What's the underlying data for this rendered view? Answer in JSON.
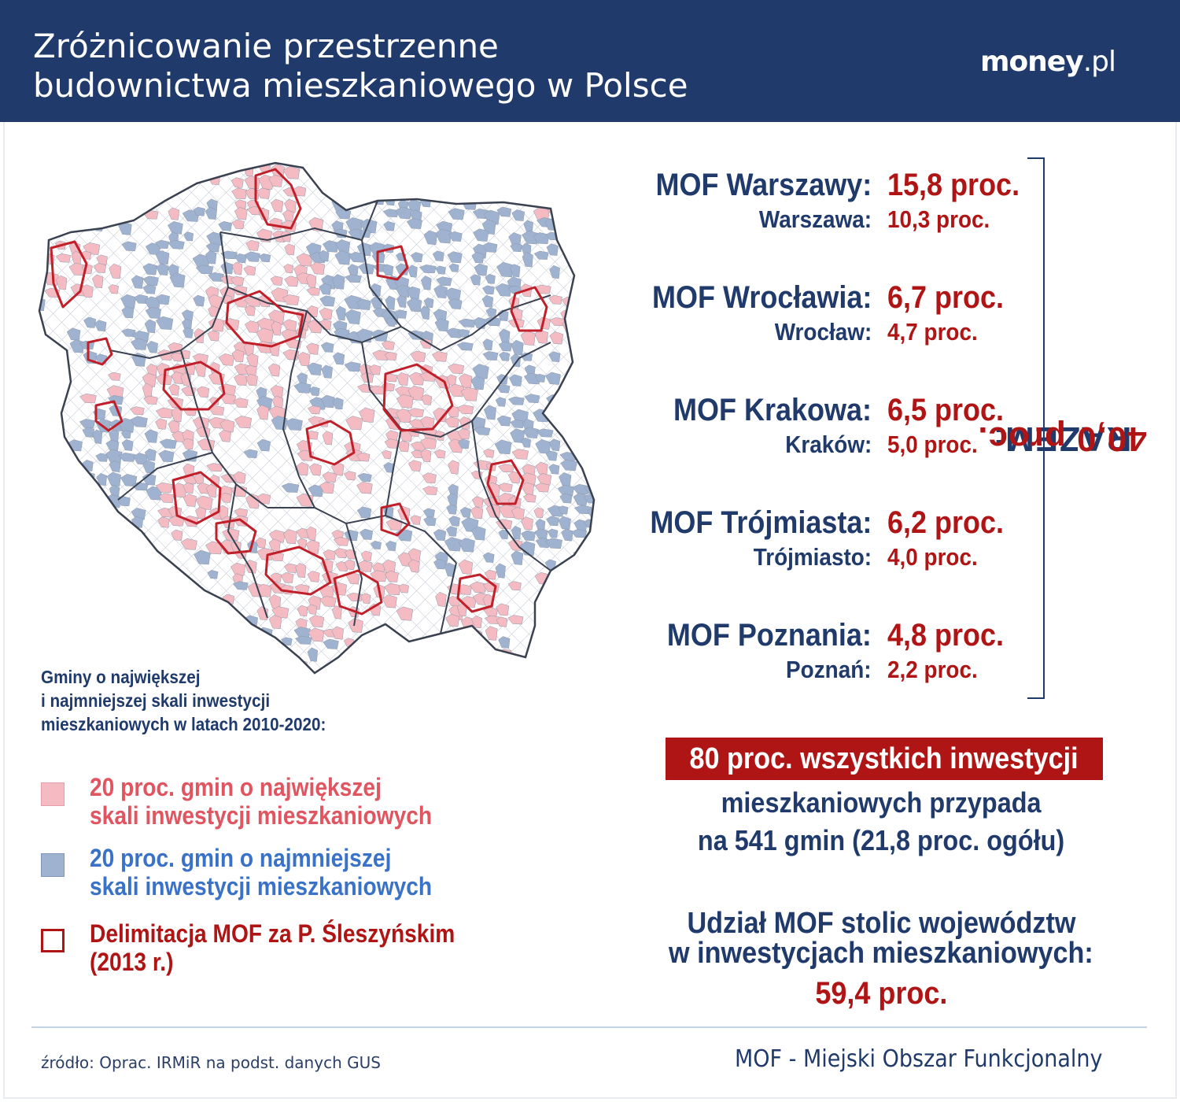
{
  "header": {
    "title_line1": "Zróżnicowanie przestrzenne",
    "title_line2": "budownictwa mieszkaniowego w Polsce",
    "logo_bold": "money",
    "logo_rest": ".pl"
  },
  "colors": {
    "navy": "#1f3a6b",
    "red": "#b01515",
    "pink_fill": "#f4bcc2",
    "blue_fill": "#9fb3d1",
    "pink_text": "#e05560",
    "blue_text": "#3a72c8"
  },
  "legend": {
    "title_line1": "Gminy o największej",
    "title_line2": "i najmniejszej skali inwestycji",
    "title_line3": "mieszkaniowych w latach 2010-2020:",
    "items": [
      {
        "line1": "20 proc. gmin o największej",
        "line2": "skali inwestycji mieszkaniowych"
      },
      {
        "line1": "20 proc. gmin o najmniejszej",
        "line2": "skali inwestycji mieszkaniowych"
      },
      {
        "line1": "Delimitacja MOF za P. Śleszyńskim",
        "line2": "(2013 r.)"
      }
    ]
  },
  "mof": [
    {
      "label": "MOF Warszawy:",
      "value": "15,8 proc.",
      "city": "Warszawa:",
      "city_value": "10,3 proc."
    },
    {
      "label": "MOF Wrocławia:",
      "value": "6,7 proc.",
      "city": "Wrocław:",
      "city_value": "4,7 proc."
    },
    {
      "label": "MOF Krakowa:",
      "value": "6,5 proc.",
      "city": "Kraków:",
      "city_value": "5,0 proc."
    },
    {
      "label": "MOF Trójmiasta:",
      "value": "6,2 proc.",
      "city": "Trójmiasto:",
      "city_value": "4,0 proc."
    },
    {
      "label": "MOF Poznania:",
      "value": "4,8 proc.",
      "city": "Poznań:",
      "city_value": "2,2 proc."
    }
  ],
  "razem": {
    "label": "RAZEM:",
    "value": "40,0 proc."
  },
  "summary": {
    "highlight": "80 proc. wszystkich inwestycji",
    "line2": "mieszkaniowych przypada",
    "line3": "na 541 gmin (21,8 proc. ogółu)",
    "share_line1": "Udział MOF stolic województw",
    "share_line2": "w inwestycjach mieszkaniowych:",
    "share_value": "59,4 proc."
  },
  "footer": {
    "source": "źródło: Oprac. IRMiR na podst. danych GUS",
    "definition": "MOF - Miejski Obszar Funkcjonalny"
  }
}
